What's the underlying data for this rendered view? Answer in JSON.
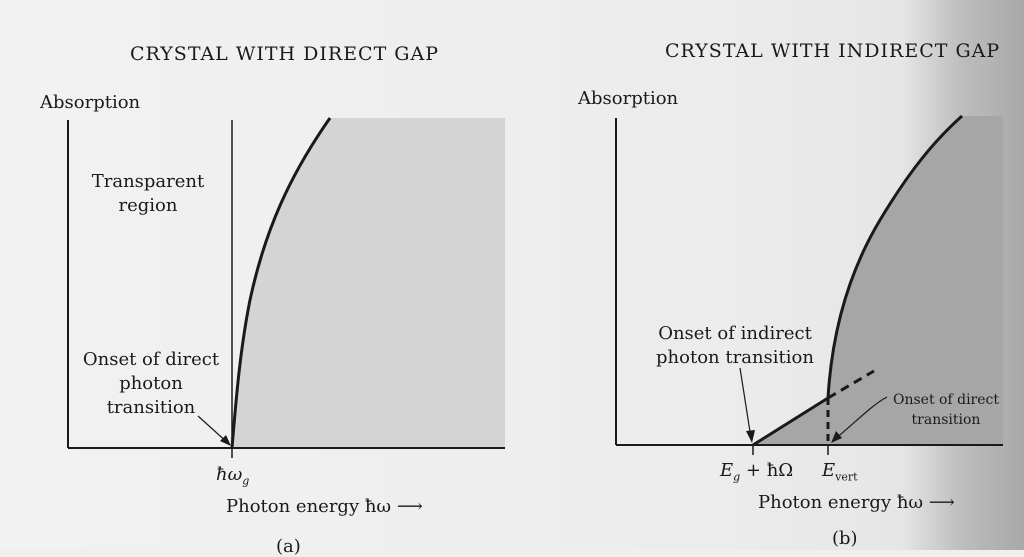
{
  "panel_a": {
    "title": "CRYSTAL WITH DIRECT GAP",
    "y_axis_label": "Absorption",
    "region_label": "Transparent region",
    "onset_label": "Onset of direct photon transition",
    "threshold_tick": "ħω",
    "threshold_sub": "g",
    "x_axis_label": "Photon energy ħω ⟶",
    "caption": "(a)"
  },
  "panel_b": {
    "title": "CRYSTAL WITH INDIRECT GAP",
    "y_axis_label": "Absorption",
    "indirect_onset_label": "Onset of indirect photon transition",
    "direct_onset_label": "Onset of direct transition",
    "threshold1_tick": "E",
    "threshold1_sub": "g",
    "threshold1_rest": " + ħΩ",
    "threshold2_tick": "E",
    "threshold2_sub": "vert",
    "x_axis_label": "Photon energy ħω ⟶",
    "caption": "(b)"
  },
  "colors": {
    "shade_a": "#d3d3d3",
    "shade_b": "#a9a9a9",
    "ink": "#1a1a1a"
  }
}
